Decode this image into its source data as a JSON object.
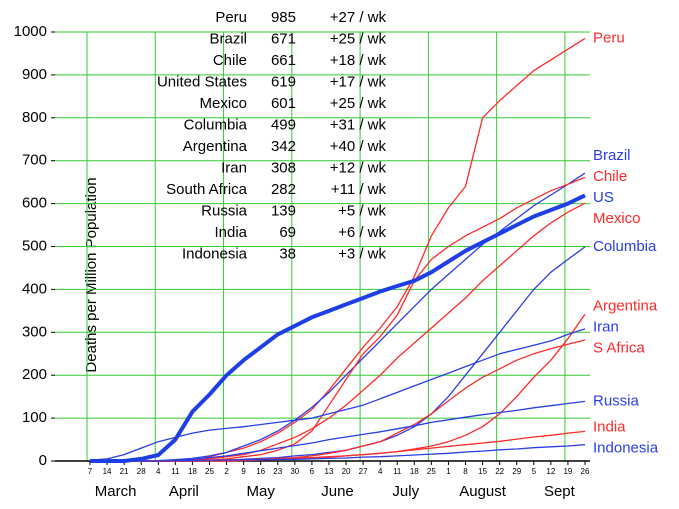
{
  "chart_data": {
    "type": "line",
    "y_label": "Deaths per Million Population",
    "ylim": [
      0,
      1000
    ],
    "yticks": [
      0,
      100,
      200,
      300,
      400,
      500,
      600,
      700,
      800,
      900,
      1000
    ],
    "grid": true,
    "grid_color": "#33cc33",
    "categories": [
      "7",
      "14",
      "21",
      "28",
      "4",
      "11",
      "18",
      "25",
      "2",
      "9",
      "16",
      "23",
      "30",
      "6",
      "13",
      "20",
      "27",
      "4",
      "11",
      "18",
      "25",
      "1",
      "8",
      "15",
      "22",
      "29",
      "5",
      "12",
      "19",
      "26"
    ],
    "x_groups": [
      {
        "label": "March",
        "categories": 4
      },
      {
        "label": "April",
        "categories": 4
      },
      {
        "label": "May",
        "categories": 5
      },
      {
        "label": "June",
        "categories": 4
      },
      {
        "label": "July",
        "categories": 4
      },
      {
        "label": "August",
        "categories": 5
      },
      {
        "label": "Sept",
        "categories": 4
      }
    ],
    "series": [
      {
        "name": "Peru",
        "color": "#ff2a2a",
        "values": [
          0,
          0,
          0,
          0,
          0,
          0,
          0,
          10,
          20,
          30,
          45,
          65,
          90,
          120,
          165,
          215,
          265,
          310,
          360,
          430,
          525,
          590,
          640,
          800,
          840,
          875,
          910,
          935,
          960,
          985
        ]
      },
      {
        "name": "Brazil",
        "color": "#2a3ee6",
        "values": [
          0,
          0,
          0,
          0,
          1,
          3,
          6,
          12,
          20,
          35,
          50,
          70,
          95,
          125,
          160,
          200,
          240,
          280,
          320,
          360,
          400,
          435,
          470,
          505,
          535,
          565,
          595,
          620,
          645,
          671
        ]
      },
      {
        "name": "Chile",
        "color": "#ff2a2a",
        "values": [
          0,
          0,
          0,
          0,
          0,
          0,
          0,
          2,
          5,
          10,
          15,
          25,
          40,
          70,
          130,
          190,
          250,
          290,
          340,
          420,
          470,
          500,
          525,
          545,
          565,
          590,
          610,
          630,
          645,
          661
        ]
      },
      {
        "name": "US",
        "color": "#1f3fe6",
        "line_width": 4,
        "values": [
          0,
          0,
          0,
          5,
          14,
          50,
          115,
          155,
          200,
          235,
          265,
          295,
          315,
          335,
          350,
          365,
          380,
          395,
          408,
          420,
          440,
          465,
          490,
          510,
          530,
          550,
          570,
          585,
          600,
          619
        ]
      },
      {
        "name": "Mexico",
        "color": "#ff2a2a",
        "values": [
          0,
          0,
          0,
          0,
          0,
          0,
          2,
          5,
          10,
          15,
          25,
          40,
          55,
          75,
          100,
          130,
          165,
          200,
          240,
          275,
          310,
          345,
          380,
          420,
          455,
          490,
          525,
          555,
          580,
          601
        ]
      },
      {
        "name": "Columbia",
        "color": "#2a3ee6",
        "values": [
          0,
          0,
          0,
          0,
          0,
          0,
          0,
          0,
          2,
          4,
          6,
          8,
          12,
          15,
          20,
          25,
          35,
          45,
          60,
          80,
          110,
          150,
          200,
          250,
          300,
          350,
          400,
          440,
          470,
          499
        ]
      },
      {
        "name": "Argentina",
        "color": "#ff2a2a",
        "values": [
          0,
          0,
          0,
          0,
          0,
          0,
          0,
          0,
          0,
          1,
          2,
          4,
          6,
          8,
          10,
          12,
          15,
          18,
          22,
          28,
          35,
          45,
          60,
          80,
          110,
          150,
          195,
          235,
          285,
          342
        ]
      },
      {
        "name": "Iran",
        "color": "#2a3ee6",
        "values": [
          2,
          5,
          15,
          30,
          45,
          55,
          65,
          72,
          76,
          80,
          85,
          90,
          95,
          100,
          110,
          120,
          130,
          145,
          160,
          175,
          190,
          205,
          220,
          235,
          250,
          260,
          270,
          280,
          295,
          308
        ]
      },
      {
        "name": "S Africa",
        "color": "#ff2a2a",
        "values": [
          0,
          0,
          0,
          0,
          0,
          0,
          0,
          1,
          2,
          3,
          4,
          6,
          8,
          12,
          18,
          25,
          35,
          45,
          65,
          85,
          110,
          140,
          170,
          195,
          215,
          235,
          250,
          262,
          272,
          282
        ]
      },
      {
        "name": "Russia",
        "color": "#2a3ee6",
        "values": [
          0,
          0,
          0,
          0,
          0,
          2,
          4,
          8,
          12,
          18,
          24,
          30,
          36,
          42,
          50,
          56,
          62,
          68,
          75,
          82,
          90,
          96,
          102,
          108,
          113,
          118,
          124,
          129,
          134,
          139
        ]
      },
      {
        "name": "India",
        "color": "#ff2a2a",
        "values": [
          0,
          0,
          0,
          0,
          0,
          1,
          1,
          2,
          2,
          3,
          3,
          4,
          5,
          7,
          9,
          12,
          15,
          18,
          22,
          26,
          30,
          34,
          38,
          42,
          46,
          51,
          56,
          60,
          65,
          69
        ]
      },
      {
        "name": "Indonesia",
        "color": "#2a3ee6",
        "values": [
          0,
          0,
          0,
          0,
          0,
          1,
          1,
          2,
          2,
          3,
          3,
          4,
          4,
          5,
          6,
          7,
          9,
          10,
          12,
          14,
          16,
          18,
          21,
          23,
          26,
          28,
          31,
          33,
          35,
          38
        ]
      }
    ],
    "stats": [
      {
        "country": "Peru",
        "deaths": 985,
        "weekly": "+27 / wk"
      },
      {
        "country": "Brazil",
        "deaths": 671,
        "weekly": "+25 / wk"
      },
      {
        "country": "Chile",
        "deaths": 661,
        "weekly": "+18 / wk"
      },
      {
        "country": "United States",
        "deaths": 619,
        "weekly": "+17 / wk"
      },
      {
        "country": "Mexico",
        "deaths": 601,
        "weekly": "+25 / wk"
      },
      {
        "country": "Columbia",
        "deaths": 499,
        "weekly": "+31 / wk"
      },
      {
        "country": "Argentina",
        "deaths": 342,
        "weekly": "+40 / wk"
      },
      {
        "country": "Iran",
        "deaths": 308,
        "weekly": "+12 / wk"
      },
      {
        "country": "South Africa",
        "deaths": 282,
        "weekly": "+11 / wk"
      },
      {
        "country": "Russia",
        "deaths": 139,
        "weekly": "+5 / wk"
      },
      {
        "country": "India",
        "deaths": 69,
        "weekly": "+6 / wk"
      },
      {
        "country": "Indonesia",
        "deaths": 38,
        "weekly": "+3 / wk"
      }
    ]
  }
}
